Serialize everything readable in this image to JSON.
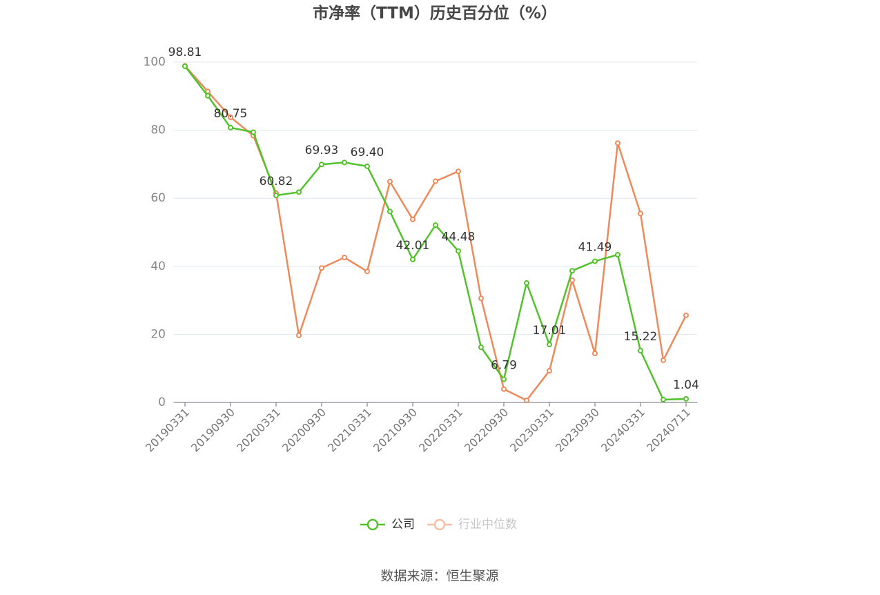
{
  "chart_data": {
    "type": "line",
    "title": "市净率（TTM）历史百分位（%）",
    "categories": [
      "20190331",
      null,
      "20190930",
      null,
      "20200331",
      null,
      "20200930",
      null,
      "20210331",
      null,
      "20210930",
      null,
      "20220331",
      null,
      "20220930",
      null,
      "20230331",
      null,
      "20230930",
      null,
      "20240331",
      null,
      "20240711"
    ],
    "series": [
      {
        "name": "公司",
        "color": "#52c22b",
        "values": [
          98.81,
          90.1,
          80.75,
          79.4,
          60.82,
          61.8,
          69.93,
          70.5,
          69.4,
          56.1,
          42.01,
          52.1,
          44.48,
          16.2,
          6.79,
          35.1,
          17.01,
          38.7,
          41.49,
          43.4,
          15.22,
          0.8,
          1.04
        ],
        "value_labels": [
          "98.81",
          null,
          "80.75",
          null,
          "60.82",
          null,
          "69.93",
          null,
          "69.40",
          null,
          "42.01",
          null,
          "44.48",
          null,
          "6.79",
          null,
          "17.01",
          null,
          "41.49",
          null,
          "15.22",
          null,
          "1.04"
        ]
      },
      {
        "name": "行业中位数",
        "color": "#f0895a",
        "values": [
          98.9,
          91.4,
          83.8,
          78.4,
          61.5,
          19.7,
          39.5,
          42.6,
          38.5,
          64.9,
          53.8,
          65.0,
          67.9,
          30.6,
          3.9,
          0.6,
          9.3,
          35.9,
          14.4,
          76.2,
          55.5,
          12.4,
          25.6
        ]
      }
    ],
    "ylim": [
      0,
      100
    ],
    "yticks": [
      0,
      20,
      40,
      60,
      80,
      100
    ],
    "grid": true,
    "legend": "bottom",
    "source": "数据来源：恒生聚源"
  }
}
